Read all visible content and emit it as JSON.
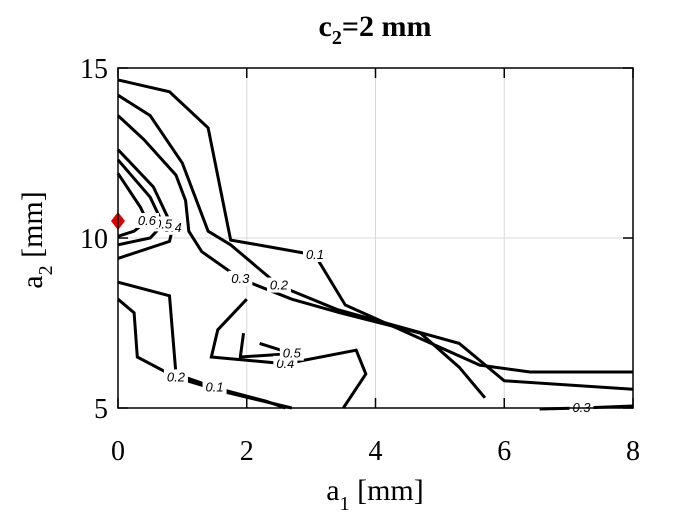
{
  "chart_data": {
    "type": "contour",
    "title": {
      "base": "c",
      "sub": "2",
      "rest": "=2 mm"
    },
    "xlabel": {
      "base": "a",
      "sub": "1",
      "rest": " [mm]"
    },
    "ylabel": {
      "base": "a",
      "sub": "2",
      "rest": " [mm]"
    },
    "xlim": [
      0,
      8
    ],
    "ylim": [
      5,
      15
    ],
    "xticks": [
      0,
      2,
      4,
      6,
      8
    ],
    "yticks": [
      5,
      10,
      15
    ],
    "grid": true,
    "line_color": "#000000",
    "contours": [
      {
        "level": 0.1,
        "x": [
          0,
          0.8,
          1.4,
          1.75,
          2.44,
          3.06,
          3.53,
          5.62,
          6.4,
          8
        ],
        "y": [
          14.65,
          14.3,
          13.24,
          9.94,
          9.71,
          9.5,
          8.03,
          6.26,
          6.06,
          6.06
        ]
      },
      {
        "level": 0.2,
        "x": [
          0,
          0.5,
          1.0,
          1.4,
          1.75,
          2.5,
          3.4,
          5.3,
          6.0,
          8
        ],
        "y": [
          14.2,
          13.6,
          12.2,
          10.2,
          9.8,
          8.6,
          7.9,
          6.9,
          5.8,
          5.55
        ]
      },
      {
        "level": 0.3,
        "x": [
          0,
          0.4,
          0.9,
          1.05,
          1.1,
          1.3,
          1.9,
          2.7,
          3.45,
          4.7,
          5.3,
          5.7
        ],
        "y": [
          13.6,
          12.9,
          11.85,
          11.1,
          10.2,
          9.6,
          8.8,
          8.2,
          7.8,
          7.2,
          6.2,
          5.3
        ]
      },
      {
        "level": 0.4,
        "x": [
          0,
          0.55,
          0.85,
          0.8,
          0
        ],
        "y": [
          12.6,
          11.5,
          10.3,
          9.9,
          9.4
        ]
      },
      {
        "level": 0.5,
        "x": [
          0,
          0.5,
          0.7,
          0.5,
          0
        ],
        "y": [
          12.3,
          11.2,
          10.4,
          10.0,
          9.8
        ]
      },
      {
        "level": 0.6,
        "x": [
          0,
          0.35,
          0.45,
          0.25,
          0
        ],
        "y": [
          11.9,
          10.9,
          10.5,
          10.2,
          10.05
        ]
      },
      {
        "level": 0.1,
        "x": [
          0,
          0.8,
          0.9,
          1.5,
          2.3,
          2.6
        ],
        "y": [
          8.7,
          8.3,
          6.0,
          5.6,
          5.2,
          5.0
        ]
      },
      {
        "level": 0.2,
        "x": [
          0,
          0.25,
          0.3,
          0.9,
          1.6,
          2.7
        ],
        "y": [
          8.2,
          7.8,
          6.5,
          5.9,
          5.5,
          5.0
        ]
      },
      {
        "level": 0.3,
        "x": [
          6.55,
          7.2,
          8
        ],
        "y": [
          4.97,
          5.0,
          5.06
        ]
      },
      {
        "level": 0.4,
        "x": [
          2.0,
          1.55,
          1.45,
          2.6,
          3.7,
          3.85,
          3.5
        ],
        "y": [
          8.2,
          7.3,
          6.5,
          6.3,
          6.7,
          6.0,
          5.0
        ]
      },
      {
        "level": 0.5,
        "x": [
          1.95,
          1.9,
          2.7,
          2.2
        ],
        "y": [
          7.2,
          6.5,
          6.6,
          6.9
        ]
      }
    ],
    "points": {
      "x": [
        0
      ],
      "y": [
        10.5
      ],
      "color": "#e00000"
    }
  }
}
